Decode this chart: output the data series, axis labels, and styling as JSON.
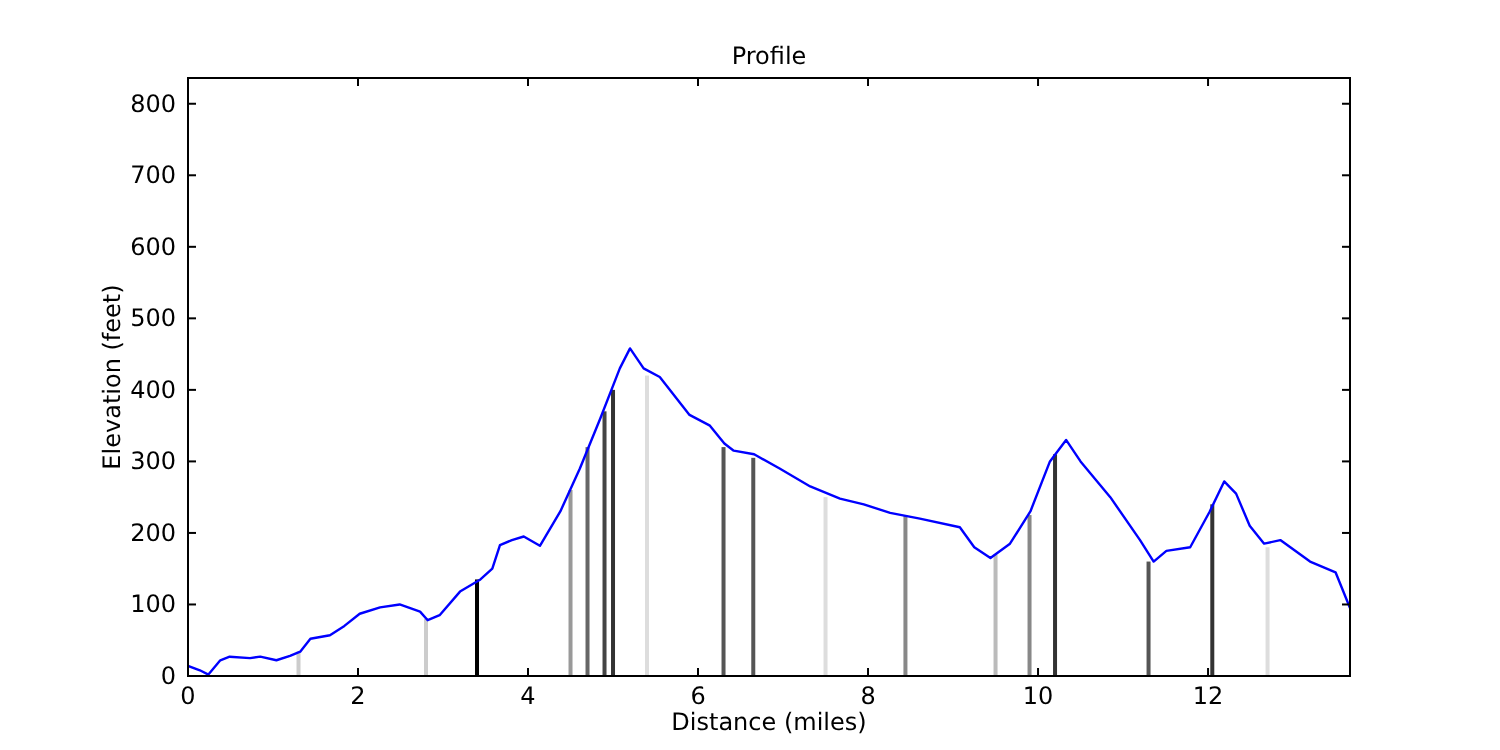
{
  "chart_data": {
    "type": "line",
    "title": "Profile",
    "xlabel": "Distance (miles)",
    "ylabel": "Elevation (feet)",
    "xlim": [
      0,
      13.67
    ],
    "ylim": [
      0,
      836
    ],
    "xticks": [
      0,
      2,
      4,
      6,
      8,
      10,
      12
    ],
    "yticks": [
      0,
      100,
      200,
      300,
      400,
      500,
      600,
      700,
      800
    ],
    "grid": false,
    "marker": "none",
    "line_style": "solid",
    "series": [
      {
        "type": "bar",
        "x": [
          1.3,
          2.8,
          3.4,
          4.5,
          4.7,
          4.9,
          5.0,
          5.4,
          6.3,
          6.65,
          7.5,
          8.44,
          9.5,
          9.9,
          10.2,
          11.3,
          12.05,
          12.7
        ],
        "values": [
          34,
          80,
          135,
          260,
          320,
          370,
          400,
          420,
          320,
          305,
          250,
          225,
          170,
          225,
          310,
          160,
          240,
          180
        ],
        "colors": [
          "#cccccc",
          "#cccccc",
          "#000000",
          "#999999",
          "#666666",
          "#444444",
          "#333333",
          "#dddddd",
          "#555555",
          "#555555",
          "#dddddd",
          "#888888",
          "#bbbbbb",
          "#888888",
          "#333333",
          "#555555",
          "#333333",
          "#dddddd"
        ]
      },
      {
        "color": "#0000ff",
        "x": [
          0,
          0.14,
          0.24,
          0.38,
          0.49,
          0.73,
          0.85,
          1.04,
          1.2,
          1.32,
          1.44,
          1.67,
          1.84,
          2.02,
          2.26,
          2.49,
          2.73,
          2.82,
          2.96,
          3.2,
          3.44,
          3.58,
          3.67,
          3.81,
          3.95,
          4.14,
          4.38,
          4.61,
          4.85,
          5.08,
          5.2,
          5.36,
          5.55,
          5.9,
          6.14,
          6.31,
          6.42,
          6.66,
          6.96,
          7.32,
          7.67,
          7.95,
          8.26,
          8.61,
          9.08,
          9.25,
          9.44,
          9.67,
          9.91,
          10.14,
          10.33,
          10.5,
          10.85,
          11.2,
          11.36,
          11.51,
          11.79,
          12.02,
          12.19,
          12.33,
          12.49,
          12.66,
          12.85,
          13.2,
          13.5,
          13.67
        ],
        "values": [
          14,
          8,
          2,
          22,
          27,
          25,
          27,
          22,
          28,
          34,
          52,
          57,
          70,
          87,
          96,
          100,
          90,
          78,
          85,
          118,
          135,
          150,
          183,
          190,
          195,
          182,
          230,
          290,
          360,
          430,
          458,
          430,
          418,
          365,
          350,
          325,
          315,
          310,
          290,
          265,
          248,
          240,
          228,
          220,
          208,
          180,
          165,
          185,
          230,
          300,
          330,
          300,
          250,
          190,
          160,
          175,
          180,
          230,
          272,
          255,
          210,
          185,
          190,
          160,
          145,
          95
        ]
      }
    ]
  }
}
